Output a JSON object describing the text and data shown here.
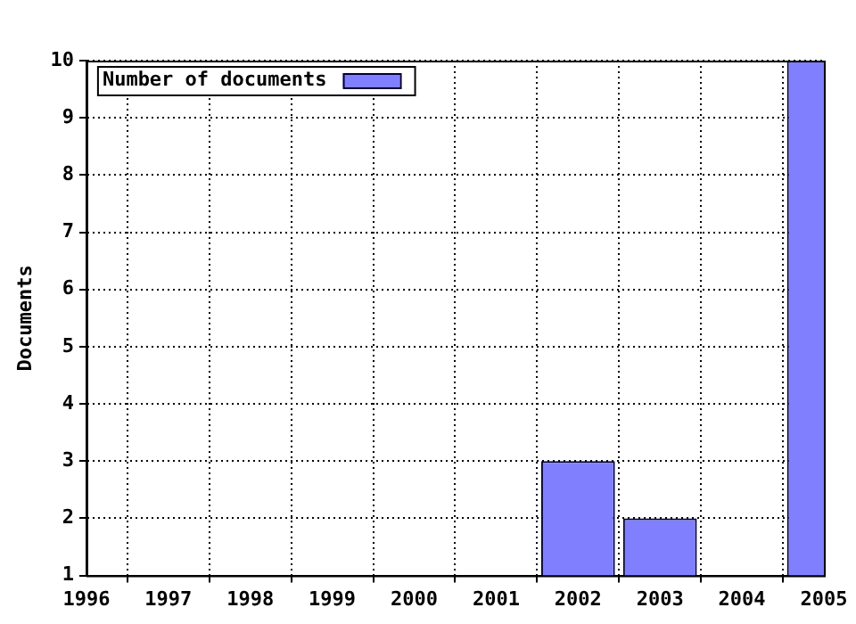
{
  "chart_data": {
    "type": "bar",
    "ylabel": "Documents",
    "x": [
      2002,
      2003,
      2005
    ],
    "series": [
      {
        "name": "Number of documents",
        "color": "#8080ff",
        "values": [
          3,
          2,
          10
        ]
      }
    ],
    "xlim": [
      1996,
      2005
    ],
    "xticks": [
      1996,
      1997,
      1998,
      1999,
      2000,
      2001,
      2002,
      2003,
      2004,
      2005
    ],
    "ylim": [
      1,
      10
    ],
    "yticks": [
      1,
      2,
      3,
      4,
      5,
      6,
      7,
      8,
      9,
      10
    ],
    "grid": true,
    "legend": "top left"
  }
}
